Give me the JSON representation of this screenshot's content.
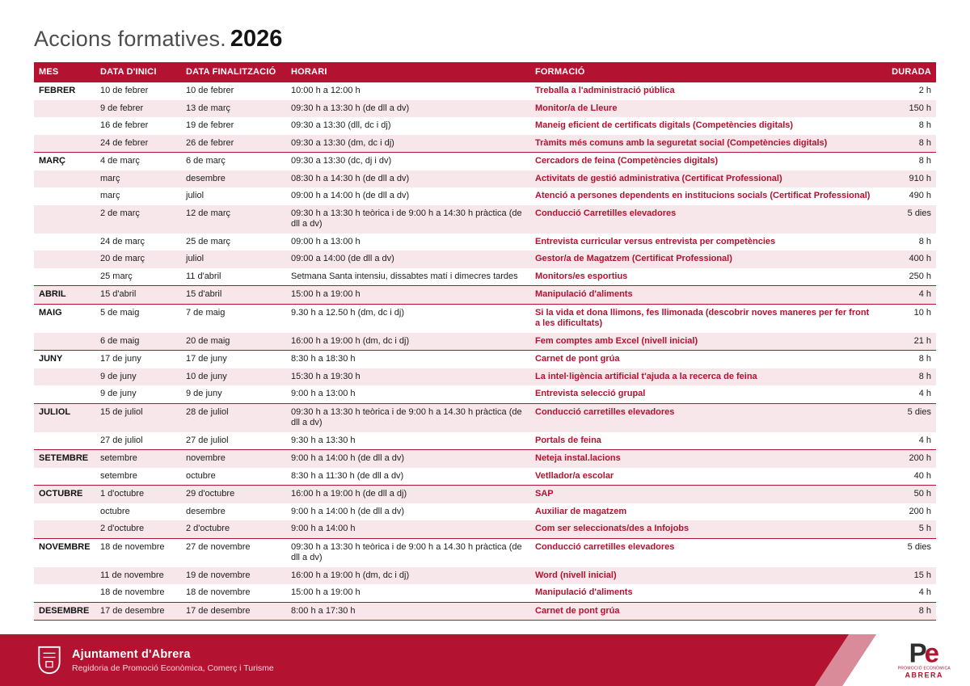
{
  "title": {
    "prefix": "Accions formatives.",
    "year": "2026"
  },
  "colors": {
    "accent": "#b31230",
    "row_alt": "#f7e6ea",
    "stripe": "#d98b99",
    "title_gray": "#4d4d4d"
  },
  "table": {
    "columns": [
      "MES",
      "DATA D'INICI",
      "DATA FINALITZACIÓ",
      "HORARI",
      "FORMACIÓ",
      "DURADA"
    ],
    "rows": [
      {
        "mes": "FEBRER",
        "inici": "10 de febrer",
        "fi": "10 de febrer",
        "horari": "10:00 h a 12:00 h",
        "formacio": "Treballa a l'administració pública",
        "durada": "2 h",
        "group_start": true
      },
      {
        "mes": "",
        "inici": "9 de febrer",
        "fi": "13 de març",
        "horari": "09:30 h a 13:30 h (de dll a dv)",
        "formacio": "Monitor/a de Lleure",
        "durada": "150 h"
      },
      {
        "mes": "",
        "inici": "16 de febrer",
        "fi": "19 de febrer",
        "horari": "09:30 a 13:30 (dll, dc i dj)",
        "formacio": "Maneig eficient de certificats digitals (Competències digitals)",
        "durada": "8 h"
      },
      {
        "mes": "",
        "inici": "24 de febrer",
        "fi": "26 de febrer",
        "horari": "09:30 a 13:30 (dm, dc i dj)",
        "formacio": "Tràmits més comuns amb la seguretat social (Competències digitals)",
        "durada": "8 h"
      },
      {
        "mes": "MARÇ",
        "inici": "4 de març",
        "fi": "6 de març",
        "horari": "09:30 a 13:30 (dc, dj i dv)",
        "formacio": "Cercadors de feina (Competències digitals)",
        "durada": "8 h",
        "group_start": true
      },
      {
        "mes": "",
        "inici": "març",
        "fi": "desembre",
        "horari": "08:30 h a 14:30 h (de dll a dv)",
        "formacio": "Activitats de gestió administrativa (Certificat Professional)",
        "durada": "910 h"
      },
      {
        "mes": "",
        "inici": "març",
        "fi": "juliol",
        "horari": "09:00 h a 14:00 h (de dll a dv)",
        "formacio": "Atenció a persones dependents en institucions socials (Certificat Professional)",
        "durada": "490 h"
      },
      {
        "mes": "",
        "inici": "2 de març",
        "fi": "12 de març",
        "horari": "09:30 h a 13:30 h teòrica i de 9:00 h a 14:30 h pràctica (de dll a dv)",
        "formacio": "Conducció Carretilles elevadores",
        "durada": "5 dies"
      },
      {
        "mes": "",
        "inici": "24 de març",
        "fi": "25 de març",
        "horari": "09:00 h a 13:00 h",
        "formacio": "Entrevista curricular versus entrevista per competències",
        "durada": "8 h"
      },
      {
        "mes": "",
        "inici": "20 de març",
        "fi": "juliol",
        "horari": "09:00 a 14:00 (de dll a dv)",
        "formacio": "Gestor/a de Magatzem (Certificat Professional)",
        "durada": "400 h"
      },
      {
        "mes": "",
        "inici": "25 març",
        "fi": "11 d'abril",
        "horari": "Setmana Santa intensiu, dissabtes matí i dimecres tardes",
        "formacio": "Monitors/es esportius",
        "durada": "250 h"
      },
      {
        "mes": "ABRIL",
        "inici": "15 d'abril",
        "fi": "15 d'abril",
        "horari": "15:00 h a 19:00 h",
        "formacio": "Manipulació d'aliments",
        "durada": "4 h",
        "group_start": true
      },
      {
        "mes": "MAIG",
        "inici": "5 de maig",
        "fi": "7 de maig",
        "horari": "9.30 h a 12.50 h (dm, dc i dj)",
        "formacio": "Si la vida et dona llimons, fes llimonada (descobrir noves maneres per fer front a les dificultats)",
        "durada": "10 h",
        "group_start": true
      },
      {
        "mes": "",
        "inici": "6 de maig",
        "fi": "20 de maig",
        "horari": "16:00 h a 19:00 h (dm, dc i dj)",
        "formacio": "Fem comptes amb Excel (nivell inicial)",
        "durada": "21 h"
      },
      {
        "mes": "JUNY",
        "inici": "17 de juny",
        "fi": "17 de juny",
        "horari": "8:30 h a 18:30 h",
        "formacio": "Carnet de pont grúa",
        "durada": "8 h",
        "group_start": true
      },
      {
        "mes": "",
        "inici": "9 de juny",
        "fi": "10 de juny",
        "horari": "15:30 h a 19:30 h",
        "formacio": "La intel·ligència artificial t'ajuda a la recerca de feina",
        "durada": "8 h"
      },
      {
        "mes": "",
        "inici": "9 de juny",
        "fi": "9 de juny",
        "horari": "9:00 h a 13:00 h",
        "formacio": "Entrevista selecció grupal",
        "durada": "4 h"
      },
      {
        "mes": "JULIOL",
        "inici": "15 de juliol",
        "fi": "28 de juliol",
        "horari": "09:30 h a 13:30 h teòrica i de 9:00 h a 14.30 h pràctica (de dll a dv)",
        "formacio": "Conducció carretilles elevadores",
        "durada": "5 dies",
        "group_start": true
      },
      {
        "mes": "",
        "inici": "27 de juliol",
        "fi": "27 de juliol",
        "horari": "9:30 h a 13:30 h",
        "formacio": "Portals de feina",
        "durada": "4 h"
      },
      {
        "mes": "SETEMBRE",
        "inici": "setembre",
        "fi": "novembre",
        "horari": "9:00 h a 14:00 h (de dll a dv)",
        "formacio": "Neteja instal.lacions",
        "durada": "200 h",
        "group_start": true
      },
      {
        "mes": "",
        "inici": "setembre",
        "fi": "octubre",
        "horari": "8:30 h a 11:30 h (de dll a dv)",
        "formacio": "Vetllador/a escolar",
        "durada": "40 h"
      },
      {
        "mes": "OCTUBRE",
        "inici": "1 d'octubre",
        "fi": "29 d'octubre",
        "horari": "16:00 h a 19:00 h (de dll a dj)",
        "formacio": "SAP",
        "durada": "50 h",
        "group_start": true
      },
      {
        "mes": "",
        "inici": "octubre",
        "fi": "desembre",
        "horari": "9:00 h a 14:00 h (de dll a dv)",
        "formacio": "Auxiliar de magatzem",
        "durada": "200 h"
      },
      {
        "mes": "",
        "inici": "2 d'octubre",
        "fi": "2 d'octubre",
        "horari": "9:00 h a 14:00 h",
        "formacio": "Com ser seleccionats/des a Infojobs",
        "durada": "5 h"
      },
      {
        "mes": "NOVEMBRE",
        "inici": "18 de novembre",
        "fi": "27 de novembre",
        "horari": "09:30 h a 13:30 h teòrica i de 9:00 h a 14.30 h pràctica (de dll a dv)",
        "formacio": "Conducció carretilles elevadores",
        "durada": "5 dies",
        "group_start": true
      },
      {
        "mes": "",
        "inici": "11 de novembre",
        "fi": "19 de novembre",
        "horari": "16:00 h a 19:00 h (dm, dc i dj)",
        "formacio": "Word (nivell inicial)",
        "durada": "15 h"
      },
      {
        "mes": "",
        "inici": "18 de novembre",
        "fi": "18 de novembre",
        "horari": "15:00 h a 19:00 h",
        "formacio": "Manipulació d'aliments",
        "durada": "4 h"
      },
      {
        "mes": "DESEMBRE",
        "inici": "17 de desembre",
        "fi": "17 de desembre",
        "horari": "8:00 h a 17:30 h",
        "formacio": "Carnet de pont grúa",
        "durada": "8 h",
        "group_start": true
      }
    ]
  },
  "footer": {
    "org": "Ajuntament d'Abrera",
    "dept": "Regidoria de Promoció Econòmica, Comerç i Turisme",
    "logo": "abrera-shield",
    "pe_logo": {
      "p": "P",
      "e": "e",
      "line1": "PROMOCIÓ ECONÒMICA",
      "line2": "ABRERA"
    }
  }
}
